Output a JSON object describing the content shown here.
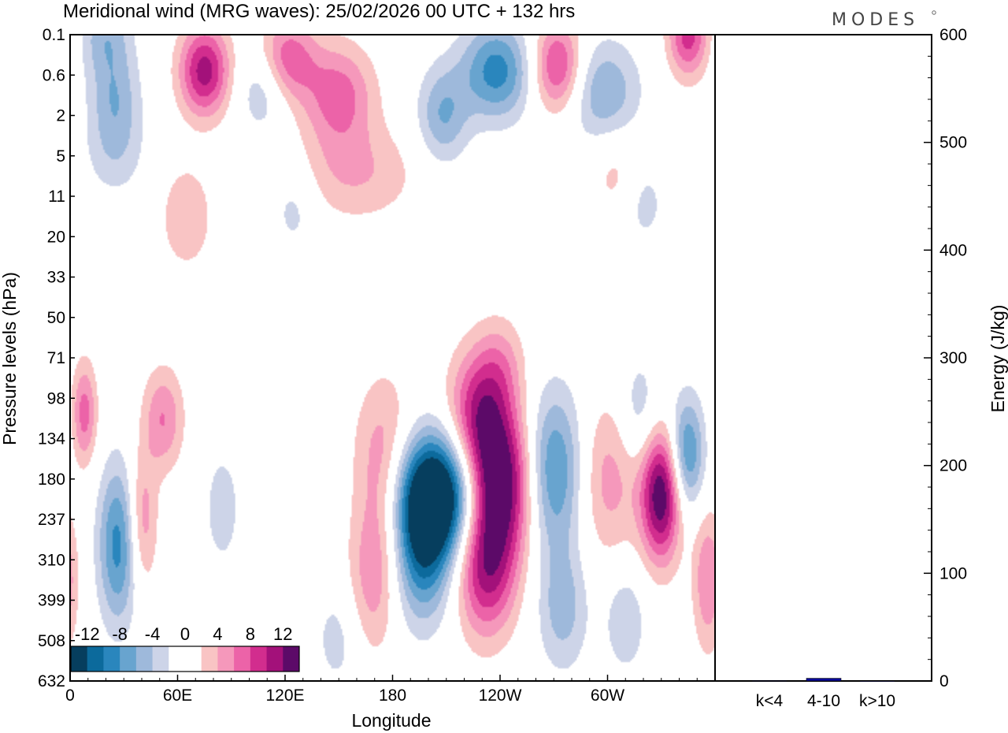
{
  "chart_data": [
    {
      "type": "heatmap",
      "title": "Meridional wind (MRG waves):  25/02/2026  00 UTC  + 132 hrs",
      "brand": "MODES",
      "xlabel": "Longitude",
      "ylabel": "Pressure levels (hPa)",
      "x_ticks": [
        "0",
        "60E",
        "120E",
        "180",
        "120W",
        "60W"
      ],
      "y_ticks": [
        "0.1",
        "0.6",
        "2",
        "5",
        "11",
        "20",
        "33",
        "50",
        "71",
        "98",
        "134",
        "180",
        "237",
        "310",
        "399",
        "508",
        "632"
      ],
      "colorbar_labels": [
        "-12",
        "-8",
        "-4",
        "0",
        "4",
        "8",
        "12"
      ],
      "colorbar_colors": [
        "#063e5e",
        "#0c6a9c",
        "#2a86bd",
        "#68a4cf",
        "#9eb9db",
        "#cdd4e8",
        "#ffffff",
        "#ffffff",
        "#f9c4c4",
        "#f598bb",
        "#ec63a8",
        "#d22d8e",
        "#a3117a",
        "#5c0a68"
      ],
      "blobs": [
        {
          "lon": 205,
          "p": 200,
          "v": -18,
          "lw": 20,
          "pw": 2.2
        },
        {
          "lon": 196,
          "p": 300,
          "v": -9,
          "lw": 12,
          "pw": 2.5
        },
        {
          "lon": 238,
          "p": 185,
          "v": 17,
          "lw": 14,
          "pw": 2.6
        },
        {
          "lon": 232,
          "p": 330,
          "v": 10,
          "lw": 12,
          "pw": 2.4
        },
        {
          "lon": 227,
          "p": 110,
          "v": 8,
          "lw": 12,
          "pw": 2.2
        },
        {
          "lon": 270,
          "p": 170,
          "v": -9,
          "lw": 12,
          "pw": 2.8
        },
        {
          "lon": 275,
          "p": 420,
          "v": -5,
          "lw": 10,
          "pw": 2.2
        },
        {
          "lon": 176,
          "p": 190,
          "v": 9,
          "lw": 12,
          "pw": 3.2
        },
        {
          "lon": 168,
          "p": 380,
          "v": 4,
          "lw": 10,
          "pw": 2.5
        },
        {
          "lon": 300,
          "p": 180,
          "v": 5,
          "lw": 13,
          "pw": 2.8
        },
        {
          "lon": 330,
          "p": 200,
          "v": 14,
          "lw": 8,
          "pw": 2.3
        },
        {
          "lon": 344,
          "p": 150,
          "v": -9,
          "lw": 7,
          "pw": 2.0
        },
        {
          "lon": 318,
          "p": 110,
          "v": -4,
          "lw": 8,
          "pw": 2.0
        },
        {
          "lon": 27,
          "p": 280,
          "v": -9,
          "lw": 8,
          "pw": 2.8
        },
        {
          "lon": 40,
          "p": 240,
          "v": 6,
          "lw": 6,
          "pw": 2.4
        },
        {
          "lon": 52,
          "p": 115,
          "v": 6,
          "lw": 8,
          "pw": 1.8
        },
        {
          "lon": 8,
          "p": 110,
          "v": 7,
          "lw": 5,
          "pw": 1.8
        },
        {
          "lon": 85,
          "p": 220,
          "v": -3,
          "lw": 8,
          "pw": 2.3
        },
        {
          "lon": 150,
          "p": 500,
          "v": -3,
          "lw": 10,
          "pw": 2.0
        },
        {
          "lon": 356,
          "p": 350,
          "v": 6,
          "lw": 6,
          "pw": 2.5
        },
        {
          "lon": 310,
          "p": 450,
          "v": -4,
          "lw": 8,
          "pw": 1.8
        },
        {
          "lon": 75,
          "p": 0.5,
          "v": 11,
          "lw": 10,
          "pw": 1.6
        },
        {
          "lon": 120,
          "p": 0.3,
          "v": 8,
          "lw": 12,
          "pw": 1.5
        },
        {
          "lon": 150,
          "p": 1.1,
          "v": 7,
          "lw": 14,
          "pw": 1.8
        },
        {
          "lon": 108,
          "p": 0.8,
          "v": -5,
          "lw": 10,
          "pw": 1.6
        },
        {
          "lon": 238,
          "p": 0.5,
          "v": -9,
          "lw": 14,
          "pw": 1.7
        },
        {
          "lon": 208,
          "p": 2.0,
          "v": -6,
          "lw": 10,
          "pw": 1.7
        },
        {
          "lon": 272,
          "p": 0.4,
          "v": 9,
          "lw": 10,
          "pw": 1.6
        },
        {
          "lon": 298,
          "p": 1.0,
          "v": -6,
          "lw": 14,
          "pw": 1.8
        },
        {
          "lon": 345,
          "p": 0.1,
          "v": 9,
          "lw": 8,
          "pw": 1.5
        },
        {
          "lon": 20,
          "p": 0.1,
          "v": -5,
          "lw": 10,
          "pw": 1.5
        },
        {
          "lon": 25,
          "p": 1.2,
          "v": -5,
          "lw": 10,
          "pw": 1.7
        },
        {
          "lon": 25,
          "p": 4.8,
          "v": -3,
          "lw": 12,
          "pw": 1.6
        },
        {
          "lon": 160,
          "p": 7.0,
          "v": 4,
          "lw": 24,
          "pw": 1.7
        },
        {
          "lon": 65,
          "p": 15.0,
          "v": 4,
          "lw": 10,
          "pw": 1.8
        },
        {
          "lon": 305,
          "p": 7.0,
          "v": 3,
          "lw": 10,
          "pw": 1.6
        },
        {
          "lon": 320,
          "p": 12.0,
          "v": -3,
          "lw": 9,
          "pw": 1.6
        },
        {
          "lon": 125,
          "p": 13.0,
          "v": -3,
          "lw": 9,
          "pw": 1.6
        },
        {
          "lon": 240,
          "p": 75.0,
          "v": 4,
          "lw": 10,
          "pw": 1.7
        }
      ],
      "energy": {
        "ylabel": "Energy (J/kg)",
        "y_ticks": [
          "0",
          "100",
          "200",
          "300",
          "400",
          "500",
          "600"
        ],
        "ylim": [
          0,
          600
        ],
        "categories": [
          "k<4",
          "4-10",
          "k>10"
        ],
        "values": [
          0.3,
          2.5,
          0.2
        ],
        "bar_color": "#0a0a9a"
      }
    }
  ]
}
